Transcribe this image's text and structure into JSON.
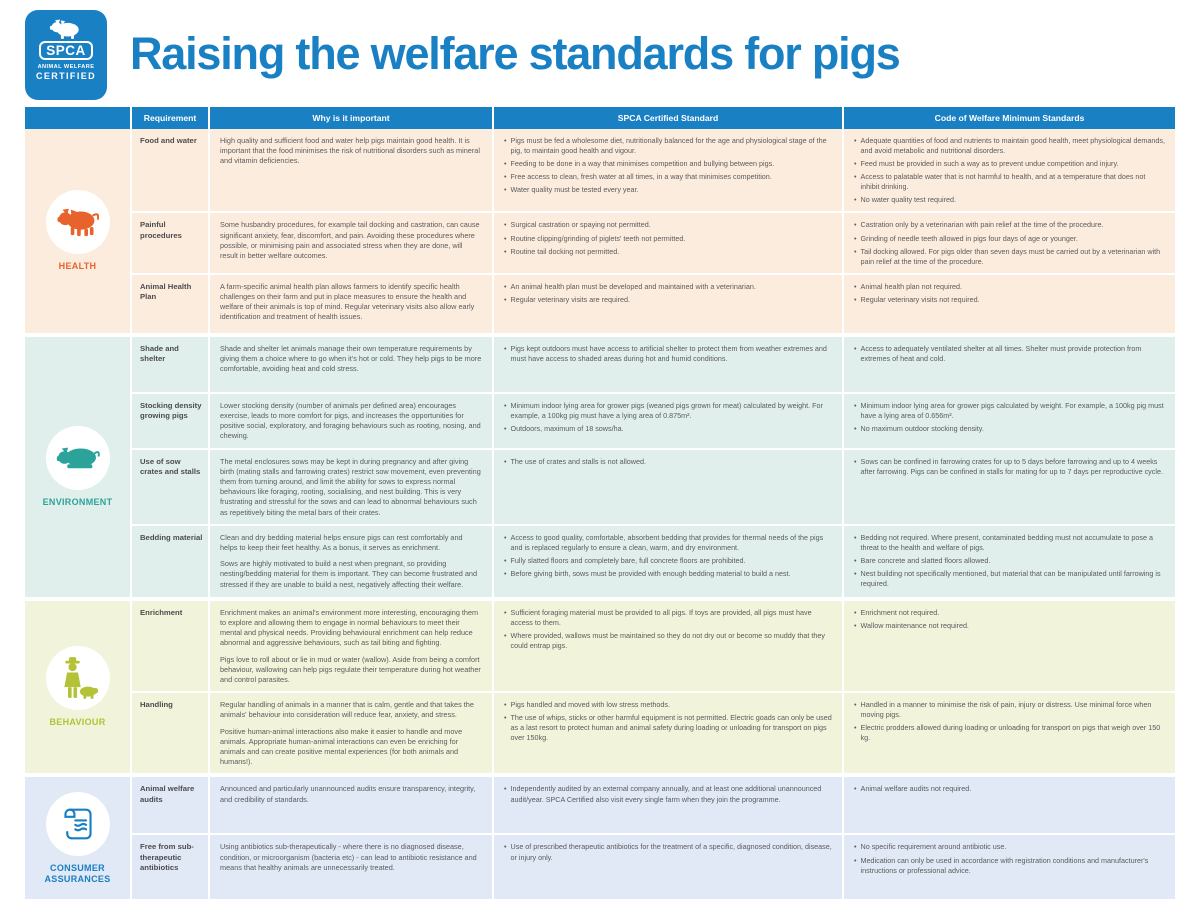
{
  "logo": {
    "brand": "SPCA",
    "line1": "ANIMAL WELFARE",
    "line2": "CERTIFIED"
  },
  "header": {
    "title": "Raising the welfare standards for pigs"
  },
  "colors": {
    "brand_blue": "#1a80c4",
    "health_bg": "#fcecdd",
    "health_accent": "#e8632c",
    "environment_bg": "#e0efeb",
    "environment_accent": "#2ba39b",
    "behaviour_bg": "#f1f4da",
    "behaviour_accent": "#b3c236",
    "consumer_bg": "#e0e9f5",
    "consumer_accent": "#1a7ec2"
  },
  "table": {
    "columns": {
      "requirement": "Requirement",
      "why": "Why is it important",
      "spca": "SPCA Certified Standard",
      "code": "Code of Welfare Minimum Standards"
    },
    "sections": [
      {
        "id": "health",
        "label": "HEALTH",
        "icon": "pig-standing-icon",
        "rows": [
          {
            "requirement": "Food and water",
            "why": [
              "High quality and sufficient food and water help pigs maintain good health. It is important that the food minimises the risk of nutritional disorders such as mineral and vitamin deficiencies."
            ],
            "spca": [
              "Pigs must be fed a wholesome diet, nutritionally balanced for the age and physiological stage of the pig, to maintain good health and vigour.",
              "Feeding to be done in a way that minimises competition and bullying between pigs.",
              "Free access to clean, fresh water at all times, in a way that minimises competition.",
              "Water quality must be tested every year."
            ],
            "code": [
              "Adequate quantities of food and nutrients to maintain good health, meet physiological demands, and avoid metabolic and nutritional disorders.",
              "Feed must be provided in such a way as to prevent undue competition and injury.",
              "Access to palatable water that is not harmful to health, and at a temperature that does not inhibit drinking.",
              "No water quality test required."
            ]
          },
          {
            "requirement": "Painful procedures",
            "why": [
              "Some husbandry procedures, for example tail docking and castration, can cause significant anxiety, fear, discomfort, and pain. Avoiding these procedures where possible, or minimising pain and associated stress when they are done, will result in better welfare outcomes."
            ],
            "spca": [
              "Surgical castration or spaying not permitted.",
              "Routine clipping/grinding of piglets' teeth not permitted.",
              "Routine tail docking not permitted."
            ],
            "code": [
              "Castration only by a veterinarian with pain relief at the time of the procedure.",
              "Grinding of needle teeth allowed in pigs four days of age or younger.",
              "Tail docking allowed. For pigs older than seven days must be carried out by a veterinarian with pain relief at the time of the procedure."
            ]
          },
          {
            "requirement": "Animal Health Plan",
            "why": [
              "A farm-specific animal health plan allows farmers to identify specific health challenges on their farm and put in place measures to ensure the health and welfare of their animals is top of mind. Regular veterinary visits also allow early identification and treatment of health issues."
            ],
            "spca": [
              "An animal health plan must be developed and maintained with a veterinarian.",
              "Regular veterinary visits are required."
            ],
            "code": [
              "Animal health plan not required.",
              "Regular veterinary visits not required."
            ]
          }
        ]
      },
      {
        "id": "environment",
        "label": "ENVIRONMENT",
        "icon": "pig-lying-icon",
        "rows": [
          {
            "requirement": "Shade and shelter",
            "why": [
              "Shade and shelter let animals manage their own temperature requirements by giving them a choice where to go when it's hot or cold. They help pigs to be more comfortable, avoiding heat and cold stress."
            ],
            "spca": [
              "Pigs kept outdoors must have access to artificial shelter to protect them from weather extremes and must have access to shaded areas during hot and humid conditions."
            ],
            "code": [
              "Access to adequately ventilated shelter at all times. Shelter must provide protection from extremes of heat and cold."
            ]
          },
          {
            "requirement": "Stocking density growing pigs",
            "why": [
              "Lower stocking density (number of animals per defined area) encourages exercise, leads to more comfort for pigs, and increases the opportunities for positive social, exploratory, and foraging behaviours such as rooting, nosing, and chewing."
            ],
            "spca": [
              "Minimum indoor lying area for grower pigs (weaned pigs grown for meat) calculated by weight. For example, a 100kg pig must have a lying area of 0.875m².",
              "Outdoors, maximum of 18 sows/ha."
            ],
            "code": [
              "Minimum indoor lying area for grower pigs calculated by weight. For example, a 100kg pig must have a lying area of 0.656m².",
              "No maximum outdoor stocking density."
            ]
          },
          {
            "requirement": "Use of sow crates and stalls",
            "why": [
              "The metal enclosures sows may be kept in during pregnancy and after giving birth (mating stalls and farrowing crates) restrict sow movement, even preventing them from turning around, and limit the ability for sows to express normal behaviours like foraging, rooting, socialising, and nest building. This is very frustrating and stressful for the sows and can lead to abnormal behaviours such as repetitively biting the metal bars of their crates."
            ],
            "spca": [
              "The use of crates and stalls is not allowed."
            ],
            "code": [
              "Sows can be confined in farrowing crates for up to 5 days before farrowing and up to 4 weeks after farrowing. Pigs can be confined in stalls for mating for up to 7 days per reproductive cycle."
            ]
          },
          {
            "requirement": "Bedding material",
            "why": [
              "Clean and dry bedding material helps ensure pigs can rest comfortably and helps to keep their feet healthy. As a bonus, it serves as enrichment.",
              "Sows are highly motivated to build a nest when pregnant, so providing nesting/bedding material for them is important. They can become frustrated and stressed if they are unable to build a nest, negatively affecting their welfare."
            ],
            "spca": [
              "Access to good quality, comfortable, absorbent bedding that provides for thermal needs of the pigs and is replaced regularly to ensure a clean, warm, and dry environment.",
              "Fully slatted floors and completely bare, full concrete floors are prohibited.",
              "Before giving birth, sows must be provided with enough bedding material to build a nest."
            ],
            "code": [
              "Bedding not required. Where present, contaminated bedding must not accumulate to pose a threat to the health and welfare of pigs.",
              "Bare concrete and slatted floors allowed.",
              "Nest building not specifically mentioned, but material that can be manipulated until farrowing is required."
            ]
          }
        ]
      },
      {
        "id": "behaviour",
        "label": "BEHAVIOUR",
        "icon": "farmer-with-pig-icon",
        "rows": [
          {
            "requirement": "Enrichment",
            "why": [
              "Enrichment makes an animal's environment more interesting, encouraging them to explore and allowing them to engage in normal behaviours to meet their mental and physical needs. Providing behavioural enrichment can help reduce abnormal and aggressive behaviours, such as tail biting and fighting.",
              "Pigs love to roll about or lie in mud or water (wallow). Aside from being a comfort behaviour, wallowing can help pigs regulate their temperature during hot weather and control parasites."
            ],
            "spca": [
              "Sufficient foraging material must be provided to all pigs. If toys are provided, all pigs must have access to them.",
              "Where provided, wallows must be maintained so they do not dry out or become so muddy that they could entrap pigs."
            ],
            "code": [
              "Enrichment not required.",
              "Wallow maintenance not required."
            ]
          },
          {
            "requirement": "Handling",
            "why": [
              "Regular handling of animals in a manner that is calm, gentle and that takes the animals' behaviour into consideration will reduce fear, anxiety, and stress.",
              "Positive human-animal interactions also make it easier to handle and move animals. Appropriate human-animal interactions can even be enriching for animals and can create positive mental experiences (for both animals and humans!)."
            ],
            "spca": [
              "Pigs handled and moved with low stress methods.",
              "The use of whips, sticks or other harmful equipment is not permitted. Electric goads can only be used as a last resort to protect human and animal safety during loading or unloading for transport on pigs over 150kg."
            ],
            "code": [
              "Handled in a manner to minimise the risk of pain, injury or distress. Use minimal force when moving pigs.",
              "Electric prodders allowed during loading or unloading for transport on pigs that weigh over 150 kg."
            ]
          }
        ]
      },
      {
        "id": "consumer",
        "label": "CONSUMER ASSURANCES",
        "icon": "scroll-certificate-icon",
        "rows": [
          {
            "requirement": "Animal welfare audits",
            "why": [
              "Announced and particularly unannounced audits ensure transparency, integrity, and credibility of standards."
            ],
            "spca": [
              "Independently audited by an external company annually, and at least one additional unannounced audit/year. SPCA Certified also visit every single farm when they join the programme."
            ],
            "code": [
              "Animal welfare audits not required."
            ]
          },
          {
            "requirement": "Free from sub-therapeutic antibiotics",
            "why": [
              "Using antibiotics sub-therapeutically - where there is no diagnosed disease, condition, or microorganism (bacteria etc) - can lead to antibiotic resistance and means that healthy animals are unnecessarily treated."
            ],
            "spca": [
              "Use of prescribed therapeutic antibiotics for the treatment of a specific, diagnosed condition, disease, or injury only."
            ],
            "code": [
              "No specific requirement around antibiotic use.",
              "Medication can only be used in accordance with registration conditions and manufacturer's instructions or professional advice."
            ]
          }
        ]
      }
    ]
  }
}
